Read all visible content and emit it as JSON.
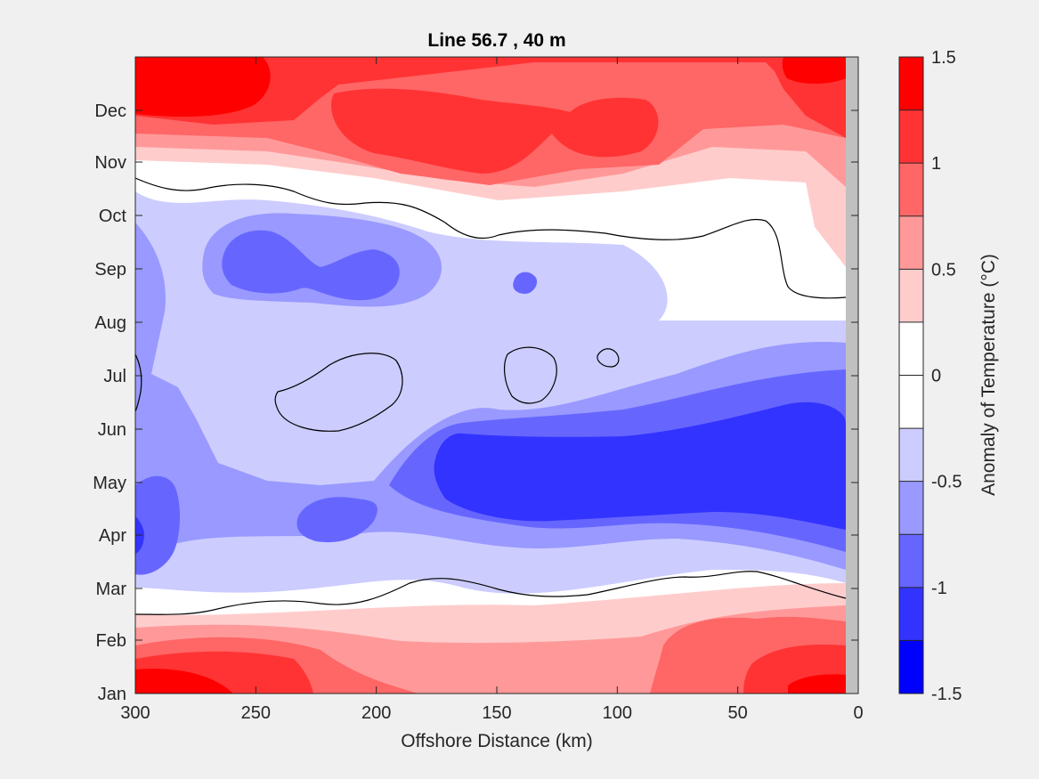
{
  "chart_data": {
    "type": "heatmap",
    "title": "Line 56.7 , 40 m",
    "xlabel": "Offshore Distance (km)",
    "ylabel": "",
    "x_ticks": [
      "300",
      "250",
      "200",
      "150",
      "100",
      "50",
      "0"
    ],
    "x_range": [
      300,
      0
    ],
    "y_ticks": [
      "Jan",
      "Feb",
      "Mar",
      "Apr",
      "May",
      "Jun",
      "Jul",
      "Aug",
      "Sep",
      "Oct",
      "Nov",
      "Dec"
    ],
    "colorbar": {
      "label": "Anomaly of Temperature (°C)",
      "ticks": [
        "1.5",
        "1",
        "0.5",
        "0",
        "-0.5",
        "-1",
        "-1.5"
      ],
      "range": [
        -1.5,
        1.5
      ],
      "levels": [
        {
          "range": [
            1.25,
            1.5
          ],
          "color": "#ff0000"
        },
        {
          "range": [
            1.0,
            1.25
          ],
          "color": "#ff3333"
        },
        {
          "range": [
            0.75,
            1.0
          ],
          "color": "#ff6666"
        },
        {
          "range": [
            0.5,
            0.75
          ],
          "color": "#ff9999"
        },
        {
          "range": [
            0.25,
            0.5
          ],
          "color": "#ffcccc"
        },
        {
          "range": [
            0.0,
            0.25
          ],
          "color": "#ffffff"
        },
        {
          "range": [
            -0.25,
            0.0
          ],
          "color": "#ffffff"
        },
        {
          "range": [
            -0.5,
            -0.25
          ],
          "color": "#ccccff"
        },
        {
          "range": [
            -0.75,
            -0.5
          ],
          "color": "#9999ff"
        },
        {
          "range": [
            -1.0,
            -0.75
          ],
          "color": "#6666ff"
        },
        {
          "range": [
            -1.25,
            -1.0
          ],
          "color": "#3333ff"
        },
        {
          "range": [
            -1.5,
            -1.25
          ],
          "color": "#0000ff"
        }
      ]
    },
    "contour_line_level": 0,
    "grid": false
  }
}
